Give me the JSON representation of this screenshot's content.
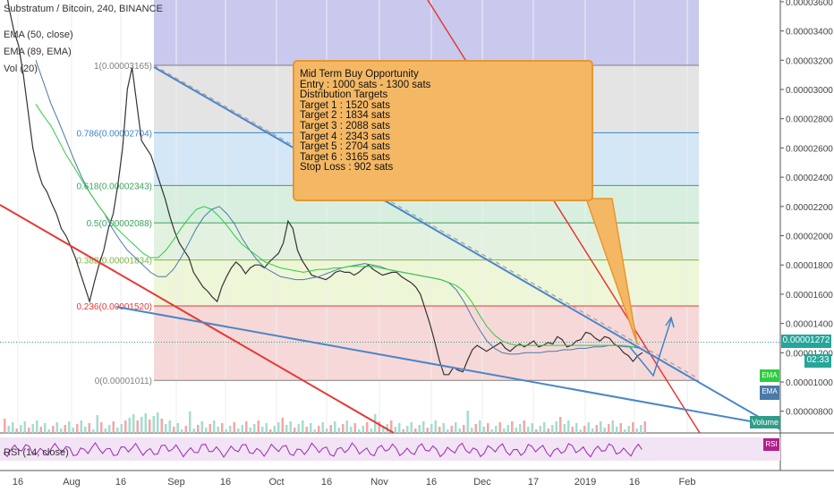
{
  "header": {
    "symbol": "Substratum / Bitcoin, 240, BINANCE",
    "ema50": "EMA (50, close)",
    "ema89": "EMA (89, EMA)",
    "vol": "Vol (20)",
    "rsi": "RSI (14, close)"
  },
  "callout": {
    "lines": [
      "Mid Term Buy Opportunity",
      "Entry : 1000 sats - 1300 sats",
      "Distribution Targets",
      "Target 1 : 1520 sats",
      "Target 2 : 1834 sats",
      "Target 3 : 2088 sats",
      "Target 4 : 2343 sats",
      "Target 5 : 2704 sats",
      "Target 6 : 3165 sats",
      "Stop Loss : 902 sats"
    ]
  },
  "tags": {
    "price": "0.00001272",
    "timer": "02:33",
    "ema_green": "EMA",
    "ema_blue": "EMA",
    "volume": "Volume",
    "rsi": "RSI"
  },
  "chart_data": {
    "type": "line",
    "title": "Substratum / Bitcoin, 240, BINANCE",
    "x_ticks": [
      "16",
      "Aug",
      "16",
      "Sep",
      "16",
      "Oct",
      "16",
      "Nov",
      "16",
      "Dec",
      "17",
      "2019",
      "16",
      "Feb"
    ],
    "y_ticks": [
      "0.00000800",
      "0.00001000",
      "0.00001200",
      "0.00001400",
      "0.00001600",
      "0.00001800",
      "0.00002000",
      "0.00002200",
      "0.00002400",
      "0.00002600",
      "0.00002800",
      "0.00003000",
      "0.00003200",
      "0.00003400",
      "0.00003600"
    ],
    "ylim": [
      6.8e-06,
      3.66e-05
    ],
    "fib_levels": [
      {
        "label": "1(0.00003165)",
        "value": 3.165e-05,
        "color": "#808080"
      },
      {
        "label": "0.786(0.00002704)",
        "value": 2.704e-05,
        "color": "#3d85c6"
      },
      {
        "label": "0.618(0.00002343)",
        "value": 2.343e-05,
        "color": "#3ba55c"
      },
      {
        "label": "0.5(0.00002088)",
        "value": 2.088e-05,
        "color": "#3ba55c"
      },
      {
        "label": "0.382(0.00001834)",
        "value": 1.834e-05,
        "color": "#7cb342"
      },
      {
        "label": "0.236(0.00001520)",
        "value": 1.52e-05,
        "color": "#e53935"
      },
      {
        "label": "0(0.00001011)",
        "value": 1.011e-05,
        "color": "#808080"
      }
    ],
    "current_price": 1.272e-05,
    "series": [
      {
        "values": [
          3.75e-05,
          3.55e-05,
          3.4e-05,
          3.3e-05,
          3.1e-05,
          2.85e-05,
          2.6e-05,
          2.45e-05,
          2.35e-05,
          2.3e-05,
          2.22e-05,
          2.15e-05,
          2.05e-05,
          2e-05,
          1.93e-05,
          1.85e-05,
          1.75e-05,
          1.65e-05,
          1.55e-05,
          1.68e-05,
          1.8e-05,
          1.9e-05,
          2.05e-05,
          2.15e-05,
          2.35e-05,
          2.6e-05,
          3e-05,
          3.15e-05,
          2.9e-05,
          2.65e-05,
          2.6e-05,
          2.55e-05,
          2.45e-05,
          2.35e-05,
          2.25e-05,
          2.13e-05,
          2.03e-05,
          1.95e-05,
          1.9e-05,
          1.85e-05,
          1.75e-05,
          1.7e-05,
          1.65e-05,
          1.62e-05,
          1.58e-05,
          1.55e-05,
          1.65e-05,
          1.72e-05,
          1.78e-05,
          1.82e-05,
          1.79e-05,
          1.74e-05,
          1.78e-05,
          1.8e-05,
          1.8e-05,
          1.78e-05,
          1.82e-05,
          1.85e-05,
          1.88e-05,
          1.95e-05,
          2.1e-05,
          2.05e-05,
          1.9e-05,
          1.83e-05,
          1.78e-05,
          1.73e-05,
          1.72e-05,
          1.71e-05,
          1.7e-05,
          1.72e-05,
          1.75e-05,
          1.76e-05,
          1.75e-05,
          1.75e-05,
          1.73e-05,
          1.75e-05,
          1.78e-05,
          1.8e-05,
          1.77e-05,
          1.75e-05,
          1.73e-05,
          1.74e-05,
          1.75e-05,
          1.75e-05,
          1.72e-05,
          1.7e-05,
          1.68e-05,
          1.65e-05,
          1.6e-05,
          1.5e-05,
          1.4e-05,
          1.28e-05,
          1.15e-05,
          1.05e-05,
          1.05e-05,
          1.1e-05,
          1.08e-05,
          1.07e-05,
          1.15e-05,
          1.22e-05,
          1.25e-05,
          1.23e-05,
          1.21e-05,
          1.23e-05,
          1.25e-05,
          1.27e-05,
          1.23e-05,
          1.21e-05,
          1.24e-05,
          1.26e-05,
          1.24e-05,
          1.26e-05,
          1.28e-05,
          1.24e-05,
          1.25e-05,
          1.27e-05,
          1.26e-05,
          1.31e-05,
          1.29e-05,
          1.24e-05,
          1.25e-05,
          1.28e-05,
          1.29e-05,
          1.34e-05,
          1.33e-05,
          1.3e-05,
          1.28e-05,
          1.31e-05,
          1.3e-05,
          1.26e-05,
          1.24e-05,
          1.2e-05,
          1.18e-05,
          1.14e-05,
          1.18e-05,
          1.2e-05
        ]
      },
      {
        "values": [
          3.2e-05,
          3.05e-05,
          2.9e-05,
          2.78e-05,
          2.65e-05,
          2.52e-05,
          2.4e-05,
          2.3e-05,
          2.22e-05,
          2.15e-05,
          2.05e-05,
          1.97e-05,
          1.9e-05,
          1.85e-05,
          1.8e-05,
          1.75e-05,
          1.72e-05,
          1.72e-05,
          1.77e-05,
          1.85e-05,
          1.95e-05,
          2.05e-05,
          2.13e-05,
          2.18e-05,
          2.2e-05,
          2.15e-05,
          2.08e-05,
          1.98e-05,
          1.9e-05,
          1.83e-05,
          1.78e-05,
          1.75e-05,
          1.72e-05,
          1.71e-05,
          1.7e-05,
          1.7e-05,
          1.71e-05,
          1.72e-05,
          1.74e-05,
          1.76e-05,
          1.78e-05,
          1.79e-05,
          1.8e-05,
          1.81e-05,
          1.8e-05,
          1.79e-05,
          1.77e-05,
          1.76e-05,
          1.75e-05,
          1.74e-05,
          1.73e-05,
          1.72e-05,
          1.71e-05,
          1.7e-05,
          1.68e-05,
          1.63e-05,
          1.55e-05,
          1.45e-05,
          1.36e-05,
          1.28e-05,
          1.23e-05,
          1.2e-05,
          1.19e-05,
          1.19e-05,
          1.2e-05,
          1.2e-05,
          1.2e-05,
          1.21e-05,
          1.21e-05,
          1.22e-05,
          1.22e-05,
          1.23e-05,
          1.23e-05,
          1.24e-05,
          1.24e-05,
          1.25e-05,
          1.25e-05,
          1.24e-05,
          1.24e-05,
          1.23e-05
        ]
      },
      {
        "values": [
          2.9e-05,
          2.82e-05,
          2.75e-05,
          2.65e-05,
          2.55e-05,
          2.47e-05,
          2.38e-05,
          2.3e-05,
          2.22e-05,
          2.15e-05,
          2.08e-05,
          2.03e-05,
          1.98e-05,
          1.93e-05,
          1.88e-05,
          1.85e-05,
          1.85e-05,
          1.9e-05,
          1.97e-05,
          2.05e-05,
          2.12e-05,
          2.18e-05,
          2.2e-05,
          2.18e-05,
          2.13e-05,
          2.07e-05,
          2e-05,
          1.94e-05,
          1.9e-05,
          1.86e-05,
          1.82e-05,
          1.8e-05,
          1.78e-05,
          1.77e-05,
          1.76e-05,
          1.75e-05,
          1.76e-05,
          1.77e-05,
          1.77e-05,
          1.78e-05,
          1.78e-05,
          1.79e-05,
          1.79e-05,
          1.79e-05,
          1.79e-05,
          1.78e-05,
          1.77e-05,
          1.76e-05,
          1.75e-05,
          1.74e-05,
          1.73e-05,
          1.72e-05,
          1.71e-05,
          1.7e-05,
          1.68e-05,
          1.66e-05,
          1.62e-05,
          1.55e-05,
          1.46e-05,
          1.38e-05,
          1.32e-05,
          1.28e-05,
          1.26e-05,
          1.25e-05,
          1.25e-05,
          1.25e-05,
          1.25e-05,
          1.25e-05,
          1.25e-05,
          1.25e-05,
          1.25e-05,
          1.25e-05,
          1.25e-05,
          1.25e-05,
          1.25e-05,
          1.25e-05,
          1.25e-05,
          1.25e-05,
          1.24e-05,
          1.24e-05
        ]
      }
    ]
  }
}
